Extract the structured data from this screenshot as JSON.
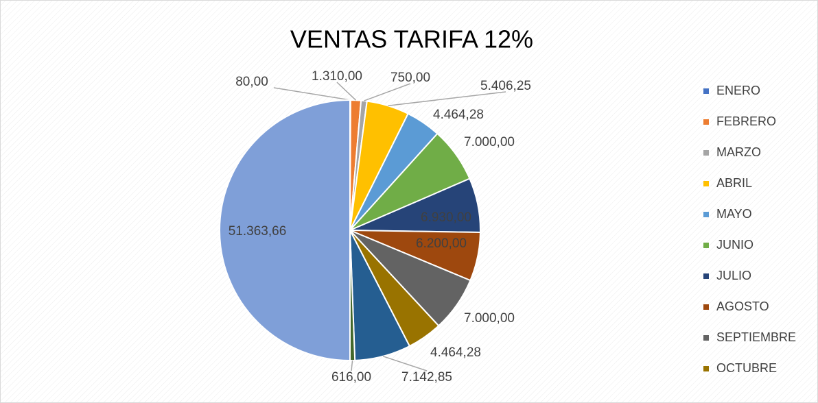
{
  "chart_data": {
    "type": "pie",
    "title": "VENTAS TARIFA 12%",
    "categories": [
      "ENERO",
      "FEBRERO",
      "MARZO",
      "ABRIL",
      "MAYO",
      "JUNIO",
      "JULIO",
      "AGOSTO",
      "SEPTIEMBRE",
      "OCTUBRE",
      null,
      null,
      null
    ],
    "values": [
      80,
      1310,
      750,
      5406.25,
      4464.28,
      7000,
      6930,
      6200,
      7000,
      4464.28,
      7142.85,
      616,
      51363.66
    ],
    "value_labels": [
      "80,00",
      "1.310,00",
      "750,00",
      "5.406,25",
      "4.464,28",
      "7.000,00",
      "6.930,00",
      "6.200,00",
      "7.000,00",
      "4.464,28",
      "7.142,85",
      "616,00",
      "51.363,66"
    ],
    "colors": [
      "#4472c4",
      "#ed7d31",
      "#a5a5a5",
      "#ffc000",
      "#5b9bd5",
      "#70ad47",
      "#264478",
      "#9e480e",
      "#636363",
      "#997300",
      "#255e91",
      "#43682b",
      "#7f9fd8"
    ]
  }
}
